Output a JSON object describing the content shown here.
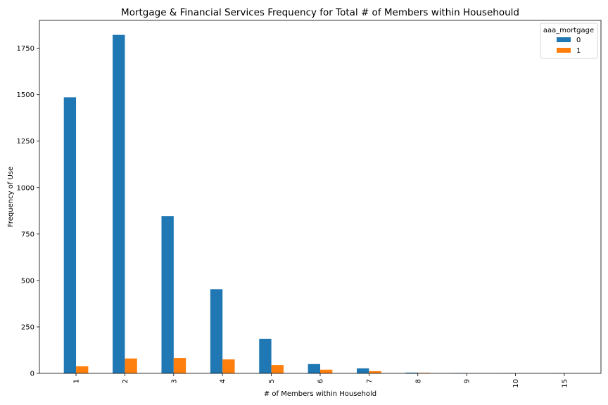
{
  "chart_data": {
    "type": "bar",
    "title": "Mortgage & Financial Services Frequency for Total # of Members within Househould",
    "xlabel": "# of Members within Household",
    "ylabel": "Frequency of Use",
    "categories": [
      "1",
      "2",
      "3",
      "4",
      "5",
      "6",
      "7",
      "8",
      "9",
      "10",
      "15"
    ],
    "series": [
      {
        "name": "0",
        "color": "#1f77b4",
        "values": [
          1486,
          1822,
          847,
          453,
          186,
          50,
          27,
          4,
          2,
          1,
          1
        ]
      },
      {
        "name": "1",
        "color": "#ff7f0e",
        "values": [
          38,
          80,
          83,
          75,
          45,
          20,
          12,
          3,
          0,
          0,
          0
        ]
      }
    ],
    "ylim": [
      0,
      1900
    ],
    "yticks": [
      0,
      250,
      500,
      750,
      1000,
      1250,
      1500,
      1750
    ],
    "ytick_labels": [
      "0",
      "250",
      "500",
      "750",
      "1000",
      "1250",
      "1500",
      "1750"
    ],
    "legend": {
      "title": "aaa_mortgage",
      "placement": "top-right"
    },
    "grid": false
  }
}
